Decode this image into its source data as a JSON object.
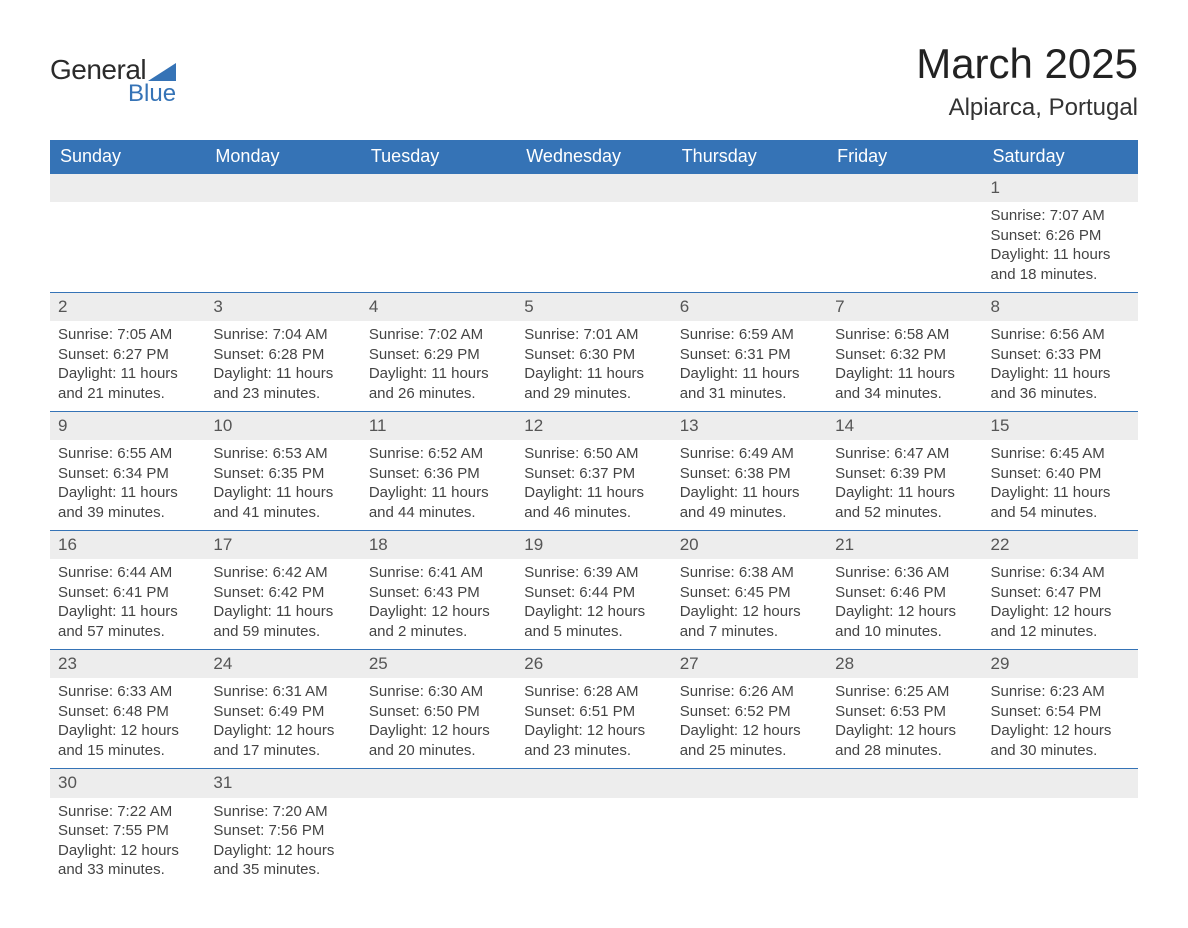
{
  "logo": {
    "text1": "General",
    "text2": "Blue",
    "tri_color": "#3573b6"
  },
  "title": "March 2025",
  "location": "Alpiarca, Portugal",
  "header_bg": "#3573b6",
  "header_text": "#ffffff",
  "daynum_bg": "#ededed",
  "border_color": "#3573b6",
  "page_bg": "#ffffff",
  "font_family": "Arial",
  "title_fontsize": 42,
  "header_fontsize": 18,
  "daynum_fontsize": 17,
  "body_fontsize": 15,
  "days": [
    "Sunday",
    "Monday",
    "Tuesday",
    "Wednesday",
    "Thursday",
    "Friday",
    "Saturday"
  ],
  "weeks": [
    [
      null,
      null,
      null,
      null,
      null,
      null,
      {
        "n": "1",
        "sr": "Sunrise: 7:07 AM",
        "ss": "Sunset: 6:26 PM",
        "d1": "Daylight: 11 hours",
        "d2": "and 18 minutes."
      }
    ],
    [
      {
        "n": "2",
        "sr": "Sunrise: 7:05 AM",
        "ss": "Sunset: 6:27 PM",
        "d1": "Daylight: 11 hours",
        "d2": "and 21 minutes."
      },
      {
        "n": "3",
        "sr": "Sunrise: 7:04 AM",
        "ss": "Sunset: 6:28 PM",
        "d1": "Daylight: 11 hours",
        "d2": "and 23 minutes."
      },
      {
        "n": "4",
        "sr": "Sunrise: 7:02 AM",
        "ss": "Sunset: 6:29 PM",
        "d1": "Daylight: 11 hours",
        "d2": "and 26 minutes."
      },
      {
        "n": "5",
        "sr": "Sunrise: 7:01 AM",
        "ss": "Sunset: 6:30 PM",
        "d1": "Daylight: 11 hours",
        "d2": "and 29 minutes."
      },
      {
        "n": "6",
        "sr": "Sunrise: 6:59 AM",
        "ss": "Sunset: 6:31 PM",
        "d1": "Daylight: 11 hours",
        "d2": "and 31 minutes."
      },
      {
        "n": "7",
        "sr": "Sunrise: 6:58 AM",
        "ss": "Sunset: 6:32 PM",
        "d1": "Daylight: 11 hours",
        "d2": "and 34 minutes."
      },
      {
        "n": "8",
        "sr": "Sunrise: 6:56 AM",
        "ss": "Sunset: 6:33 PM",
        "d1": "Daylight: 11 hours",
        "d2": "and 36 minutes."
      }
    ],
    [
      {
        "n": "9",
        "sr": "Sunrise: 6:55 AM",
        "ss": "Sunset: 6:34 PM",
        "d1": "Daylight: 11 hours",
        "d2": "and 39 minutes."
      },
      {
        "n": "10",
        "sr": "Sunrise: 6:53 AM",
        "ss": "Sunset: 6:35 PM",
        "d1": "Daylight: 11 hours",
        "d2": "and 41 minutes."
      },
      {
        "n": "11",
        "sr": "Sunrise: 6:52 AM",
        "ss": "Sunset: 6:36 PM",
        "d1": "Daylight: 11 hours",
        "d2": "and 44 minutes."
      },
      {
        "n": "12",
        "sr": "Sunrise: 6:50 AM",
        "ss": "Sunset: 6:37 PM",
        "d1": "Daylight: 11 hours",
        "d2": "and 46 minutes."
      },
      {
        "n": "13",
        "sr": "Sunrise: 6:49 AM",
        "ss": "Sunset: 6:38 PM",
        "d1": "Daylight: 11 hours",
        "d2": "and 49 minutes."
      },
      {
        "n": "14",
        "sr": "Sunrise: 6:47 AM",
        "ss": "Sunset: 6:39 PM",
        "d1": "Daylight: 11 hours",
        "d2": "and 52 minutes."
      },
      {
        "n": "15",
        "sr": "Sunrise: 6:45 AM",
        "ss": "Sunset: 6:40 PM",
        "d1": "Daylight: 11 hours",
        "d2": "and 54 minutes."
      }
    ],
    [
      {
        "n": "16",
        "sr": "Sunrise: 6:44 AM",
        "ss": "Sunset: 6:41 PM",
        "d1": "Daylight: 11 hours",
        "d2": "and 57 minutes."
      },
      {
        "n": "17",
        "sr": "Sunrise: 6:42 AM",
        "ss": "Sunset: 6:42 PM",
        "d1": "Daylight: 11 hours",
        "d2": "and 59 minutes."
      },
      {
        "n": "18",
        "sr": "Sunrise: 6:41 AM",
        "ss": "Sunset: 6:43 PM",
        "d1": "Daylight: 12 hours",
        "d2": "and 2 minutes."
      },
      {
        "n": "19",
        "sr": "Sunrise: 6:39 AM",
        "ss": "Sunset: 6:44 PM",
        "d1": "Daylight: 12 hours",
        "d2": "and 5 minutes."
      },
      {
        "n": "20",
        "sr": "Sunrise: 6:38 AM",
        "ss": "Sunset: 6:45 PM",
        "d1": "Daylight: 12 hours",
        "d2": "and 7 minutes."
      },
      {
        "n": "21",
        "sr": "Sunrise: 6:36 AM",
        "ss": "Sunset: 6:46 PM",
        "d1": "Daylight: 12 hours",
        "d2": "and 10 minutes."
      },
      {
        "n": "22",
        "sr": "Sunrise: 6:34 AM",
        "ss": "Sunset: 6:47 PM",
        "d1": "Daylight: 12 hours",
        "d2": "and 12 minutes."
      }
    ],
    [
      {
        "n": "23",
        "sr": "Sunrise: 6:33 AM",
        "ss": "Sunset: 6:48 PM",
        "d1": "Daylight: 12 hours",
        "d2": "and 15 minutes."
      },
      {
        "n": "24",
        "sr": "Sunrise: 6:31 AM",
        "ss": "Sunset: 6:49 PM",
        "d1": "Daylight: 12 hours",
        "d2": "and 17 minutes."
      },
      {
        "n": "25",
        "sr": "Sunrise: 6:30 AM",
        "ss": "Sunset: 6:50 PM",
        "d1": "Daylight: 12 hours",
        "d2": "and 20 minutes."
      },
      {
        "n": "26",
        "sr": "Sunrise: 6:28 AM",
        "ss": "Sunset: 6:51 PM",
        "d1": "Daylight: 12 hours",
        "d2": "and 23 minutes."
      },
      {
        "n": "27",
        "sr": "Sunrise: 6:26 AM",
        "ss": "Sunset: 6:52 PM",
        "d1": "Daylight: 12 hours",
        "d2": "and 25 minutes."
      },
      {
        "n": "28",
        "sr": "Sunrise: 6:25 AM",
        "ss": "Sunset: 6:53 PM",
        "d1": "Daylight: 12 hours",
        "d2": "and 28 minutes."
      },
      {
        "n": "29",
        "sr": "Sunrise: 6:23 AM",
        "ss": "Sunset: 6:54 PM",
        "d1": "Daylight: 12 hours",
        "d2": "and 30 minutes."
      }
    ],
    [
      {
        "n": "30",
        "sr": "Sunrise: 7:22 AM",
        "ss": "Sunset: 7:55 PM",
        "d1": "Daylight: 12 hours",
        "d2": "and 33 minutes."
      },
      {
        "n": "31",
        "sr": "Sunrise: 7:20 AM",
        "ss": "Sunset: 7:56 PM",
        "d1": "Daylight: 12 hours",
        "d2": "and 35 minutes."
      },
      null,
      null,
      null,
      null,
      null
    ]
  ]
}
